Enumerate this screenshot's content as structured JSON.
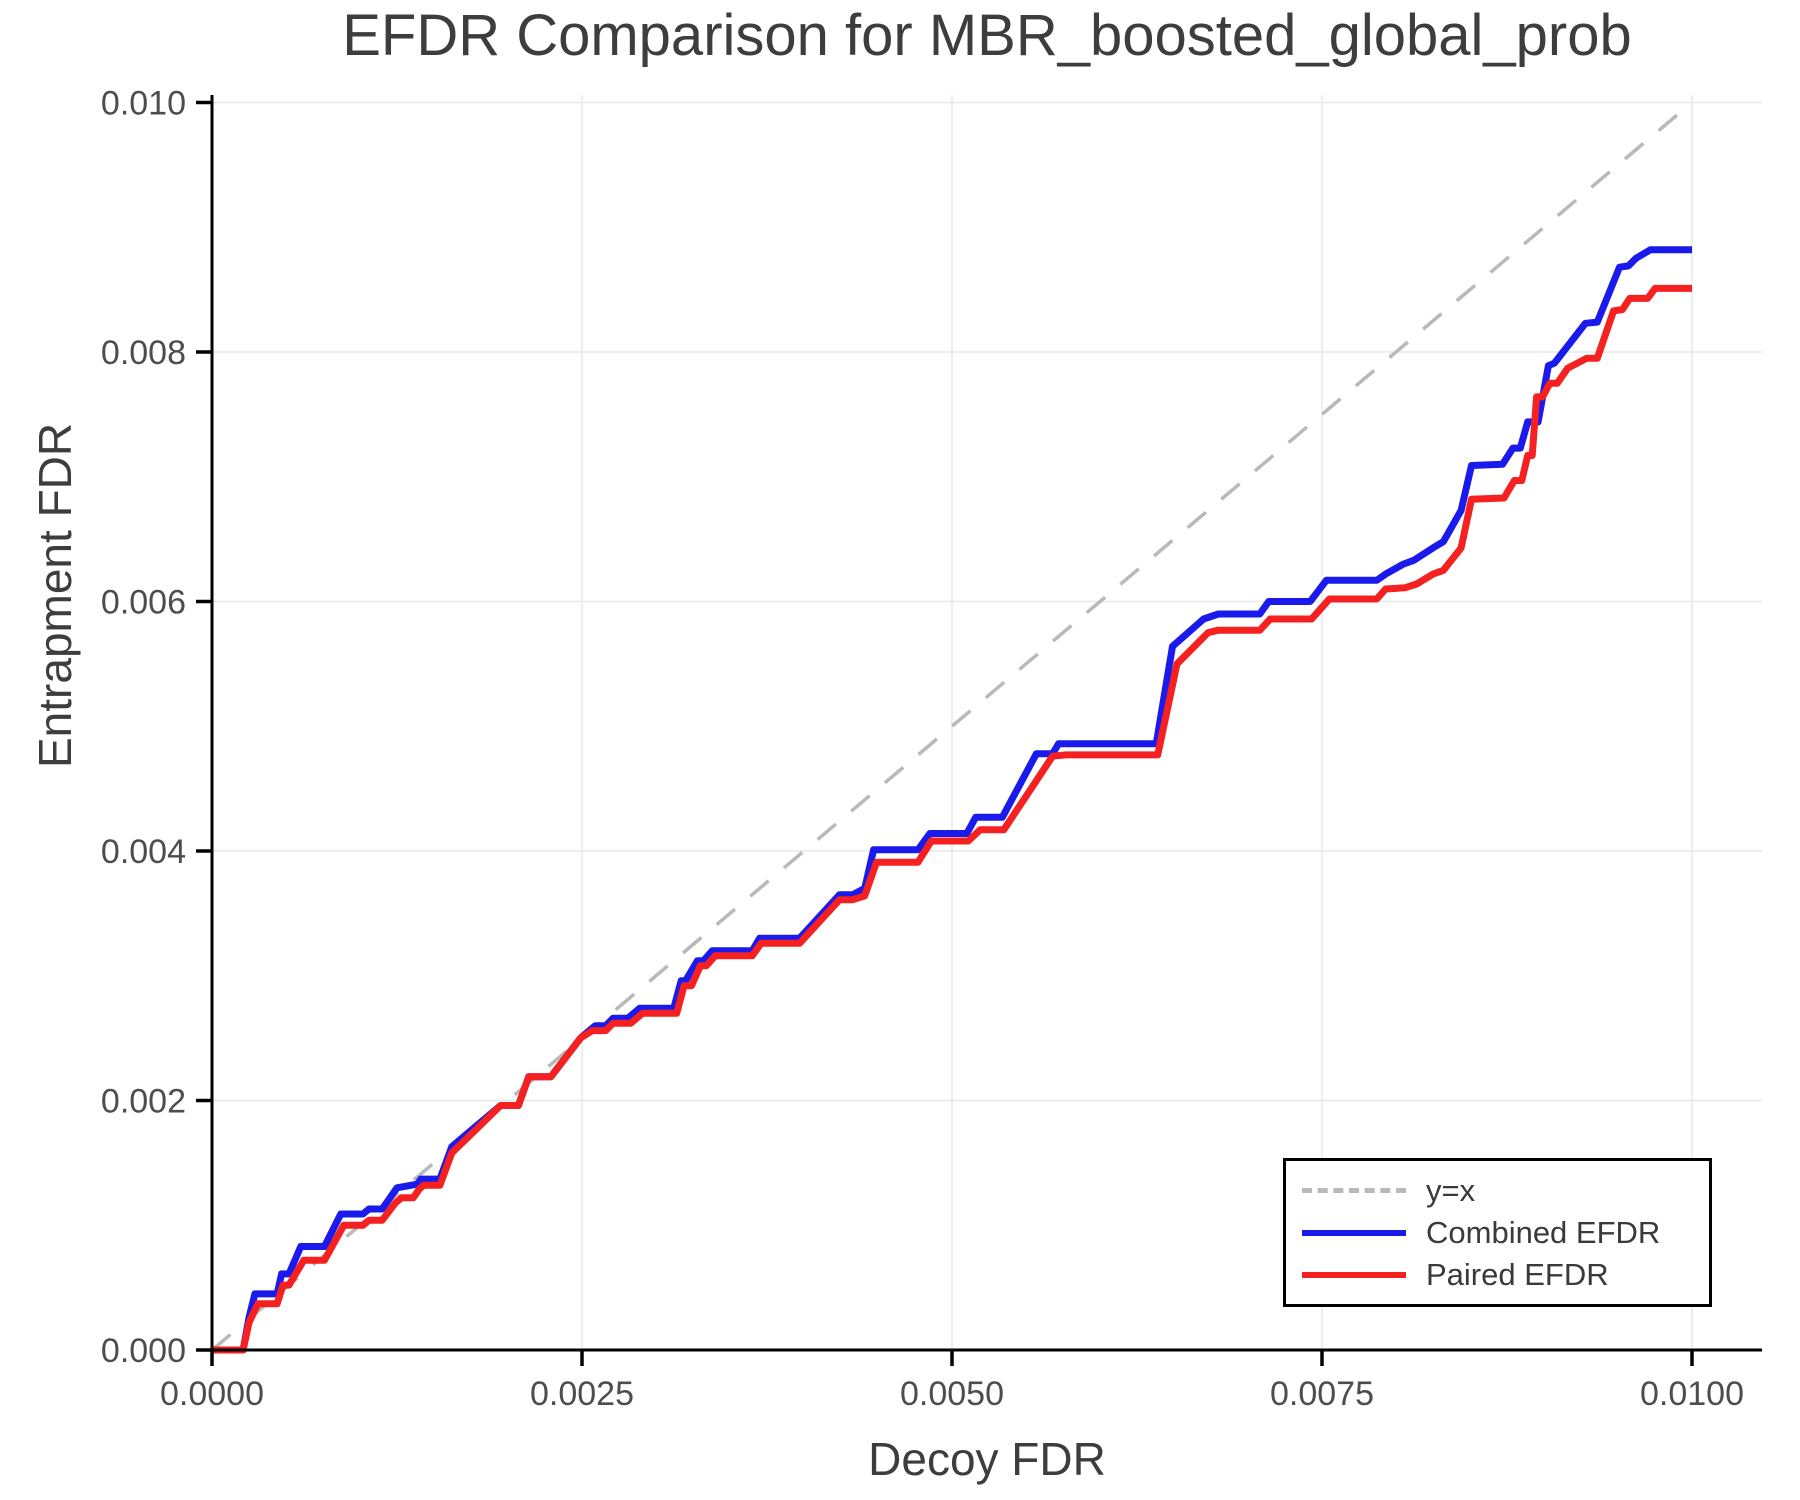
{
  "title": "EFDR Comparison for MBR_boosted_global_prob",
  "axes": {
    "x_label": "Decoy FDR",
    "y_label": "Entrapment FDR",
    "x_tick_labels": [
      "0.0000",
      "0.0025",
      "0.0050",
      "0.0075",
      "0.0100"
    ],
    "y_tick_labels": [
      "0.000",
      "0.002",
      "0.004",
      "0.006",
      "0.008",
      "0.010"
    ]
  },
  "legend": {
    "entries": [
      {
        "label": "y=x",
        "style": "dashed",
        "color": "#b9b9b9"
      },
      {
        "label": "Combined EFDR",
        "style": "solid",
        "color": "#1a1aec"
      },
      {
        "label": "Paired EFDR",
        "style": "solid",
        "color": "#f52020"
      }
    ]
  },
  "colors": {
    "grid": "#e8e8e8",
    "spine": "#000000",
    "tick": "#000000",
    "tick_label": "#4d4d4d",
    "text": "#3d3d3d",
    "diagonal": "#b9b9b9",
    "combined": "#1a1aec",
    "paired": "#f52020",
    "background": "#ffffff"
  },
  "chart_data": {
    "type": "line",
    "title": "EFDR Comparison for MBR_boosted_global_prob",
    "xlabel": "Decoy FDR",
    "ylabel": "Entrapment FDR",
    "xlim": [
      0.0,
      0.01047
    ],
    "ylim": [
      0.0,
      0.01006
    ],
    "x_tick_values": [
      0.0,
      0.0025,
      0.005,
      0.0075,
      0.01
    ],
    "y_tick_values": [
      0.0,
      0.002,
      0.004,
      0.006,
      0.008,
      0.01
    ],
    "grid": true,
    "legend_position": "lower right",
    "reference_line": {
      "name": "y=x",
      "from": [
        0.0,
        0.0
      ],
      "to": [
        0.01,
        0.01
      ],
      "style": "dashed"
    },
    "series": [
      {
        "name": "Combined EFDR",
        "color": "#1a1aec",
        "points": [
          [
            0.0,
            0.0
          ],
          [
            0.00021,
            0.0
          ],
          [
            0.00025,
            0.00026
          ],
          [
            0.00029,
            0.00045
          ],
          [
            0.00044,
            0.00045
          ],
          [
            0.00047,
            0.00061
          ],
          [
            0.00052,
            0.00061
          ],
          [
            0.0006,
            0.00083
          ],
          [
            0.00076,
            0.00083
          ],
          [
            0.00087,
            0.00109
          ],
          [
            0.00102,
            0.00109
          ],
          [
            0.00106,
            0.00113
          ],
          [
            0.00115,
            0.00113
          ],
          [
            0.00125,
            0.0013
          ],
          [
            0.00139,
            0.00133
          ],
          [
            0.00141,
            0.00137
          ],
          [
            0.00154,
            0.00137
          ],
          [
            0.00162,
            0.00163
          ],
          [
            0.00176,
            0.00177
          ],
          [
            0.00195,
            0.00196
          ],
          [
            0.00207,
            0.00196
          ],
          [
            0.00214,
            0.00219
          ],
          [
            0.00229,
            0.00219
          ],
          [
            0.00249,
            0.0025
          ],
          [
            0.00259,
            0.0026
          ],
          [
            0.00266,
            0.0026
          ],
          [
            0.00271,
            0.00266
          ],
          [
            0.00281,
            0.00266
          ],
          [
            0.00289,
            0.00274
          ],
          [
            0.00312,
            0.00274
          ],
          [
            0.00317,
            0.00296
          ],
          [
            0.0032,
            0.00296
          ],
          [
            0.00328,
            0.00312
          ],
          [
            0.00332,
            0.00312
          ],
          [
            0.00338,
            0.0032
          ],
          [
            0.00365,
            0.0032
          ],
          [
            0.0037,
            0.0033
          ],
          [
            0.00397,
            0.0033
          ],
          [
            0.00424,
            0.00365
          ],
          [
            0.00433,
            0.00365
          ],
          [
            0.00441,
            0.0037
          ],
          [
            0.00447,
            0.00401
          ],
          [
            0.00477,
            0.00401
          ],
          [
            0.00485,
            0.00414
          ],
          [
            0.0051,
            0.00414
          ],
          [
            0.00516,
            0.00427
          ],
          [
            0.00534,
            0.00427
          ],
          [
            0.00557,
            0.00478
          ],
          [
            0.00568,
            0.00478
          ],
          [
            0.00572,
            0.00486
          ],
          [
            0.00638,
            0.00486
          ],
          [
            0.00649,
            0.00564
          ],
          [
            0.0067,
            0.00586
          ],
          [
            0.0068,
            0.0059
          ],
          [
            0.00708,
            0.0059
          ],
          [
            0.00714,
            0.006
          ],
          [
            0.00742,
            0.006
          ],
          [
            0.00753,
            0.00617
          ],
          [
            0.00787,
            0.00617
          ],
          [
            0.00793,
            0.00622
          ],
          [
            0.00805,
            0.0063
          ],
          [
            0.00812,
            0.00633
          ],
          [
            0.00825,
            0.00643
          ],
          [
            0.00832,
            0.00648
          ],
          [
            0.00844,
            0.00673
          ],
          [
            0.00851,
            0.00709
          ],
          [
            0.00872,
            0.0071
          ],
          [
            0.00879,
            0.00723
          ],
          [
            0.00884,
            0.00723
          ],
          [
            0.00889,
            0.00744
          ],
          [
            0.00896,
            0.00744
          ],
          [
            0.00903,
            0.00789
          ],
          [
            0.00907,
            0.00791
          ],
          [
            0.00928,
            0.00823
          ],
          [
            0.00936,
            0.00824
          ],
          [
            0.00951,
            0.00868
          ],
          [
            0.00957,
            0.00869
          ],
          [
            0.00962,
            0.00875
          ],
          [
            0.00972,
            0.00882
          ],
          [
            0.01,
            0.00882
          ]
        ]
      },
      {
        "name": "Paired EFDR",
        "color": "#f52020",
        "points": [
          [
            0.0,
            0.0
          ],
          [
            0.00021,
            0.0
          ],
          [
            0.00025,
            0.00022
          ],
          [
            0.00031,
            0.00037
          ],
          [
            0.00044,
            0.00037
          ],
          [
            0.00048,
            0.00052
          ],
          [
            0.00052,
            0.00052
          ],
          [
            0.00062,
            0.00072
          ],
          [
            0.00076,
            0.00072
          ],
          [
            0.00089,
            0.001
          ],
          [
            0.00102,
            0.001
          ],
          [
            0.00106,
            0.00104
          ],
          [
            0.00115,
            0.00104
          ],
          [
            0.00124,
            0.00118
          ],
          [
            0.00128,
            0.00122
          ],
          [
            0.00136,
            0.00122
          ],
          [
            0.0014,
            0.00129
          ],
          [
            0.00143,
            0.00132
          ],
          [
            0.00154,
            0.00132
          ],
          [
            0.00162,
            0.00158
          ],
          [
            0.00176,
            0.00174
          ],
          [
            0.00195,
            0.00196
          ],
          [
            0.00207,
            0.00196
          ],
          [
            0.00214,
            0.00219
          ],
          [
            0.00229,
            0.00219
          ],
          [
            0.00249,
            0.0025
          ],
          [
            0.00257,
            0.00256
          ],
          [
            0.00266,
            0.00256
          ],
          [
            0.00271,
            0.00262
          ],
          [
            0.00283,
            0.00262
          ],
          [
            0.00291,
            0.0027
          ],
          [
            0.00314,
            0.0027
          ],
          [
            0.00319,
            0.00292
          ],
          [
            0.00324,
            0.00292
          ],
          [
            0.0033,
            0.00308
          ],
          [
            0.00334,
            0.00308
          ],
          [
            0.0034,
            0.00316
          ],
          [
            0.00365,
            0.00316
          ],
          [
            0.00371,
            0.00326
          ],
          [
            0.00397,
            0.00326
          ],
          [
            0.00424,
            0.00361
          ],
          [
            0.00433,
            0.00361
          ],
          [
            0.00441,
            0.00364
          ],
          [
            0.00449,
            0.00391
          ],
          [
            0.00477,
            0.00391
          ],
          [
            0.00486,
            0.00408
          ],
          [
            0.00511,
            0.00408
          ],
          [
            0.00519,
            0.00417
          ],
          [
            0.00535,
            0.00417
          ],
          [
            0.00568,
            0.00476
          ],
          [
            0.00577,
            0.00477
          ],
          [
            0.00639,
            0.00477
          ],
          [
            0.00652,
            0.0055
          ],
          [
            0.00673,
            0.00575
          ],
          [
            0.0068,
            0.00577
          ],
          [
            0.00708,
            0.00577
          ],
          [
            0.00715,
            0.00586
          ],
          [
            0.00743,
            0.00586
          ],
          [
            0.00755,
            0.00602
          ],
          [
            0.00787,
            0.00602
          ],
          [
            0.00793,
            0.0061
          ],
          [
            0.00806,
            0.00611
          ],
          [
            0.00814,
            0.00614
          ],
          [
            0.00825,
            0.00622
          ],
          [
            0.00832,
            0.00625
          ],
          [
            0.00844,
            0.00643
          ],
          [
            0.00851,
            0.00682
          ],
          [
            0.00873,
            0.00683
          ],
          [
            0.0088,
            0.00697
          ],
          [
            0.00885,
            0.00697
          ],
          [
            0.00889,
            0.00717
          ],
          [
            0.00892,
            0.00717
          ],
          [
            0.00895,
            0.00764
          ],
          [
            0.00899,
            0.00764
          ],
          [
            0.00904,
            0.00775
          ],
          [
            0.00909,
            0.00775
          ],
          [
            0.00916,
            0.00787
          ],
          [
            0.00929,
            0.00795
          ],
          [
            0.00936,
            0.00795
          ],
          [
            0.00947,
            0.00833
          ],
          [
            0.00953,
            0.00834
          ],
          [
            0.00958,
            0.00843
          ],
          [
            0.0097,
            0.00843
          ],
          [
            0.00975,
            0.00851
          ],
          [
            0.01,
            0.00851
          ]
        ]
      }
    ]
  }
}
